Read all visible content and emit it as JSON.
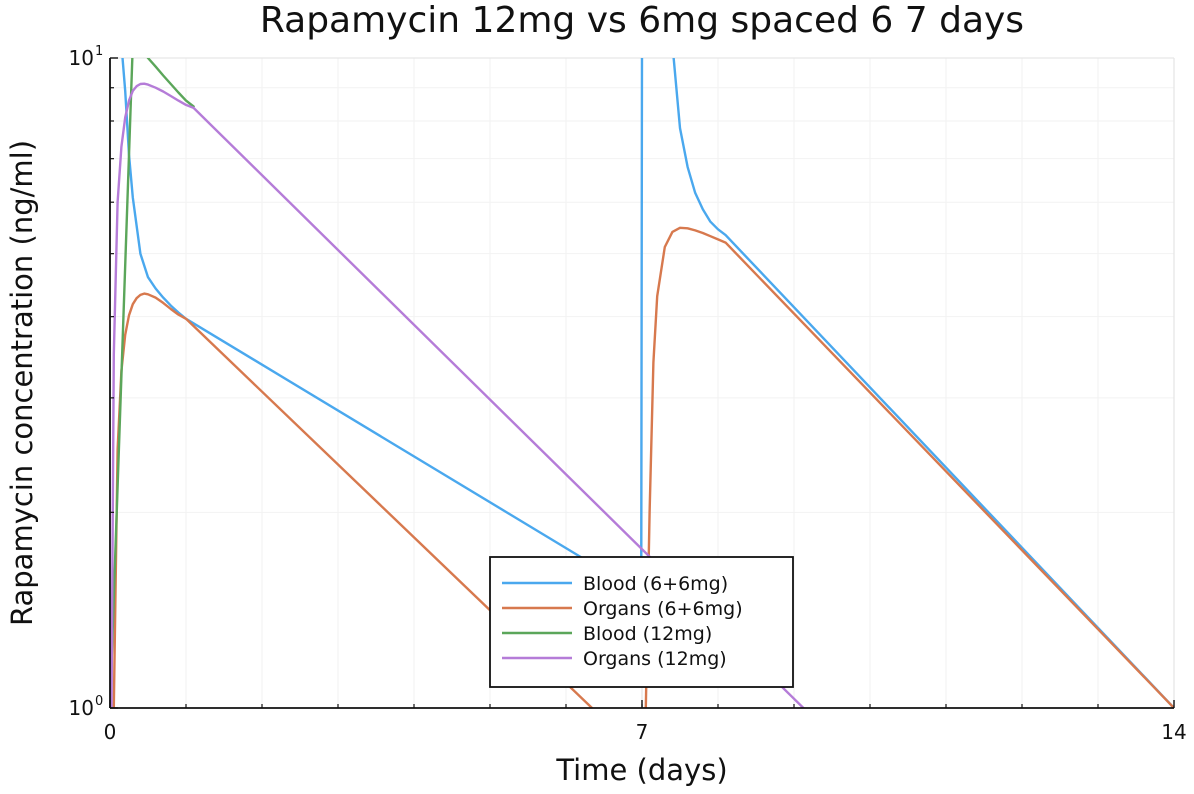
{
  "chart_data": {
    "type": "line",
    "title": "Rapamycin 12mg vs 6mg spaced 6 7 days",
    "xlabel": "Time (days)",
    "ylabel": "Rapamycin concentration (ng/ml)",
    "xlim": [
      0,
      14
    ],
    "ylim": [
      1,
      10
    ],
    "yscale": "log10",
    "xticks": [
      {
        "value": 0,
        "label": "0"
      },
      {
        "value": 7,
        "label": "7"
      },
      {
        "value": 14,
        "label": "14"
      }
    ],
    "yticks": [
      {
        "value": 1,
        "base": "10",
        "exp": "0"
      },
      {
        "value": 10,
        "base": "10",
        "exp": "1"
      }
    ],
    "grid": true,
    "legend_position": "bottom-center",
    "series": [
      {
        "name": "Blood (6+6mg)",
        "color": "#4aa8ee",
        "x": [
          0.0,
          0.02,
          0.05,
          0.1,
          0.15,
          0.2,
          0.25,
          0.3,
          0.4,
          0.5,
          0.6,
          0.7,
          0.8,
          0.9,
          1.0,
          6.99,
          7.0,
          7.02,
          7.05,
          7.1,
          7.2,
          7.3,
          7.4,
          7.5,
          7.6,
          7.7,
          7.8,
          7.9,
          8.0,
          8.1,
          14.0
        ],
        "y": [
          10.5,
          10.5,
          10.5,
          10.5,
          10.5,
          8.9,
          7.1,
          6.1,
          5.0,
          4.6,
          4.42,
          4.28,
          4.16,
          4.06,
          3.97,
          1.5,
          10.5,
          10.5,
          10.5,
          10.5,
          10.5,
          10.5,
          10.5,
          7.8,
          6.8,
          6.2,
          5.85,
          5.6,
          5.45,
          5.34,
          1.0
        ]
      },
      {
        "name": "Organs (6+6mg)",
        "color": "#d7794e",
        "x": [
          0.05,
          0.1,
          0.15,
          0.2,
          0.25,
          0.3,
          0.35,
          0.4,
          0.45,
          0.5,
          0.6,
          0.7,
          0.8,
          0.9,
          1.0,
          6.5,
          7.05,
          7.1,
          7.15,
          7.2,
          7.3,
          7.4,
          7.5,
          7.6,
          7.7,
          7.8,
          7.9,
          8.0,
          8.1,
          14.0
        ],
        "y": [
          1.0,
          2.5,
          3.3,
          3.75,
          4.02,
          4.18,
          4.27,
          4.32,
          4.34,
          4.33,
          4.28,
          4.2,
          4.11,
          4.03,
          3.97,
          0.96,
          1.0,
          2.0,
          3.4,
          4.3,
          5.12,
          5.4,
          5.48,
          5.47,
          5.43,
          5.38,
          5.32,
          5.26,
          5.2,
          1.0
        ]
      },
      {
        "name": "Blood (12mg)",
        "color": "#5ba65a",
        "x": [
          0.0,
          0.3,
          0.4,
          0.5,
          0.6,
          0.7,
          0.8,
          0.9,
          1.0,
          1.1
        ],
        "y": [
          1.0,
          10.5,
          10.5,
          10.0,
          9.7,
          9.4,
          9.12,
          8.85,
          8.6,
          8.42
        ]
      },
      {
        "name": "Organs (12mg)",
        "color": "#b57cd8",
        "x": [
          0.02,
          0.05,
          0.1,
          0.15,
          0.2,
          0.25,
          0.3,
          0.35,
          0.4,
          0.45,
          0.5,
          0.6,
          0.7,
          0.8,
          0.9,
          1.0,
          1.1,
          9.2
        ],
        "y": [
          1.0,
          3.5,
          6.0,
          7.3,
          8.1,
          8.6,
          8.9,
          9.05,
          9.12,
          9.13,
          9.1,
          9.0,
          8.88,
          8.74,
          8.6,
          8.47,
          8.38,
          0.98
        ]
      }
    ]
  }
}
